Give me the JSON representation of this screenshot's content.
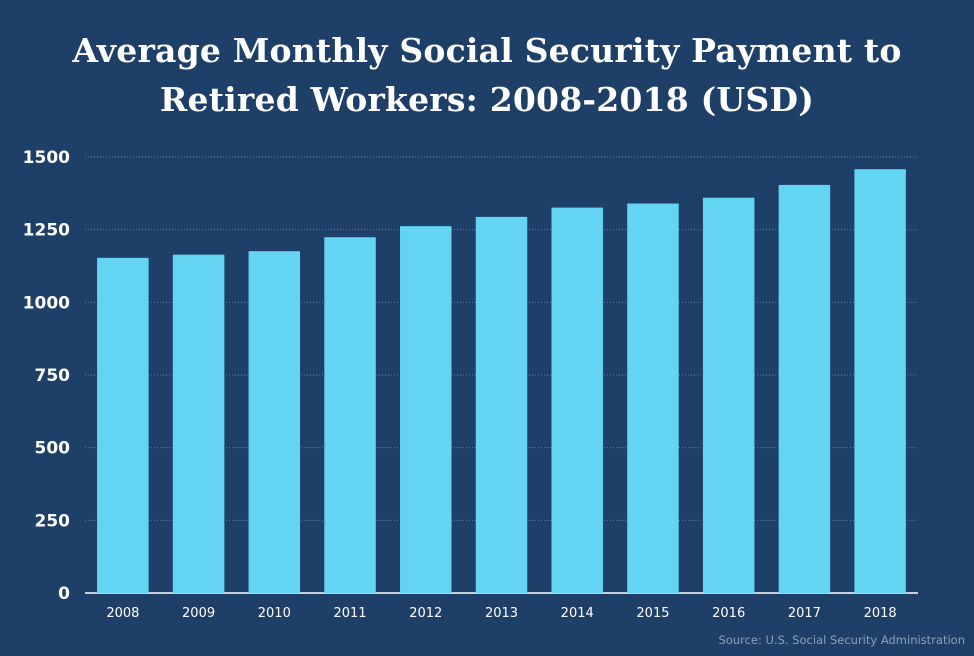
{
  "chart_data": {
    "type": "bar",
    "title_line1": "Average Monthly Social Security Payment to",
    "title_line2": "Retired Workers: 2008-2018 (USD)",
    "categories": [
      "2008",
      "2009",
      "2010",
      "2011",
      "2012",
      "2013",
      "2014",
      "2015",
      "2016",
      "2017",
      "2018"
    ],
    "values": [
      1153,
      1164,
      1176,
      1224,
      1262,
      1294,
      1326,
      1340,
      1360,
      1404,
      1458
    ],
    "ylim": [
      0,
      1500
    ],
    "yticks": [
      "0",
      "250",
      "500",
      "750",
      "1000",
      "1250",
      "1500"
    ],
    "grid": true,
    "bar_color": "#63d4f2",
    "background_color": "#1e3f68",
    "source": "Source: U.S. Social Security Administration"
  }
}
